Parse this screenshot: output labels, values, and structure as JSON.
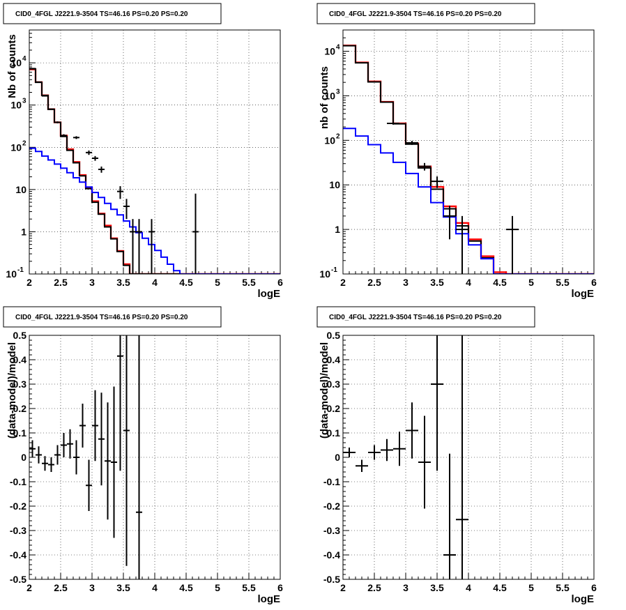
{
  "chart_data": [
    {
      "type": "line",
      "title": "CID0_4FGL J2221.9-3504 TS=46.16 PS=0.20 PS=0.20",
      "xlabel": "logE",
      "ylabel": "Nb of counts",
      "xlim": [
        2,
        6
      ],
      "ylim": [
        0.1,
        60000
      ],
      "yscale": "log",
      "grid": true,
      "x_ticks": [
        "2",
        "2.5",
        "3",
        "3.5",
        "4",
        "4.5",
        "5",
        "5.5",
        "6"
      ],
      "y_ticks": [
        {
          "value": 0.1,
          "label": "10",
          "exp": "-1"
        },
        {
          "value": 1,
          "label": "1",
          "exp": ""
        },
        {
          "value": 10,
          "label": "10",
          "exp": ""
        },
        {
          "value": 100,
          "label": "10",
          "exp": "2"
        },
        {
          "value": 1000,
          "label": "10",
          "exp": "3"
        },
        {
          "value": 10000,
          "label": "10",
          "exp": "4"
        }
      ],
      "bin_width": 0.1,
      "series": [
        {
          "color": "#ff0000",
          "kind": "hist",
          "values": [
            7000,
            3500,
            1700,
            800,
            390,
            190,
            90,
            45,
            22,
            11,
            5.3,
            2.7,
            1.4,
            0.7,
            0.35,
            0.17,
            0.1,
            0.1,
            0.1,
            0.1,
            0.1,
            0.1,
            0.1,
            0.1,
            0.1,
            0.1,
            0.1,
            0.1,
            0.1,
            0.1,
            0.1,
            0.1,
            0.1,
            0.1,
            0.1,
            0.1,
            0.1,
            0.1,
            0.1,
            0.1
          ]
        },
        {
          "color": "#000000",
          "kind": "hist",
          "values": [
            7200,
            3450,
            1690,
            790,
            390,
            180,
            85,
            43,
            21,
            10.5,
            5.0,
            2.6,
            1.3,
            0.68,
            0.34,
            0.16,
            0.1,
            0.1,
            0.1,
            0.1,
            0.1,
            0.1,
            0.1,
            0.1,
            0.1,
            0.1,
            0.1,
            0.1,
            0.1,
            0.1,
            0.1,
            0.1,
            0.1,
            0.1,
            0.1,
            0.1,
            0.1,
            0.1,
            0.1,
            0.1
          ]
        },
        {
          "color": "#0000ff",
          "kind": "hist",
          "values": [
            95,
            80,
            62,
            50,
            40,
            32,
            25,
            19,
            15,
            11.5,
            8.5,
            6.5,
            4.7,
            3.4,
            2.5,
            1.8,
            1.3,
            0.95,
            0.7,
            0.5,
            0.36,
            0.25,
            0.17,
            0.12,
            0.1,
            0.1,
            0.1,
            0.1,
            0.1,
            0.1,
            0.1,
            0.1,
            0.1,
            0.1,
            0.1,
            0.1,
            0.1,
            0.1,
            0.1,
            0.1
          ]
        },
        {
          "color": "#000000",
          "kind": "points",
          "xerr": 0.05,
          "points": [
            {
              "x": 2.05,
              "y": 7300,
              "lo": 7215,
              "hi": 7385
            },
            {
              "x": 2.15,
              "y": 3500,
              "lo": 3441,
              "hi": 3559
            },
            {
              "x": 2.25,
              "y": 1650,
              "lo": 1609,
              "hi": 1691
            },
            {
              "x": 2.35,
              "y": 800,
              "lo": 772,
              "hi": 828
            },
            {
              "x": 2.45,
              "y": 390,
              "lo": 370,
              "hi": 410
            },
            {
              "x": 2.55,
              "y": 190,
              "lo": 176,
              "hi": 204
            },
            {
              "x": 2.75,
              "y": 170,
              "lo": 157,
              "hi": 183
            },
            {
              "x": 2.95,
              "y": 75,
              "lo": 66,
              "hi": 84
            },
            {
              "x": 3.05,
              "y": 55,
              "lo": 48,
              "hi": 62
            },
            {
              "x": 3.15,
              "y": 30,
              "lo": 25,
              "hi": 35
            },
            {
              "x": 3.45,
              "y": 9,
              "lo": 6,
              "hi": 12
            },
            {
              "x": 3.55,
              "y": 4,
              "lo": 2,
              "hi": 6
            },
            {
              "x": 3.65,
              "y": 1,
              "lo": 0.1,
              "hi": 2
            },
            {
              "x": 3.75,
              "y": 1,
              "lo": 0.1,
              "hi": 2
            },
            {
              "x": 3.95,
              "y": 1,
              "lo": 0.1,
              "hi": 2
            },
            {
              "x": 4.65,
              "y": 1,
              "lo": 0.1,
              "hi": 8
            }
          ]
        }
      ]
    },
    {
      "type": "line",
      "title": "CID0_4FGL J2221.9-3504 TS=46.16 PS=0.20 PS=0.20",
      "xlabel": "logE",
      "ylabel": "nb of counts",
      "xlim": [
        2,
        6
      ],
      "ylim": [
        0.1,
        30000
      ],
      "yscale": "log",
      "grid": true,
      "x_ticks": [
        "2",
        "2.5",
        "3",
        "3.5",
        "4",
        "4.5",
        "5",
        "5.5",
        "6"
      ],
      "y_ticks": [
        {
          "value": 0.1,
          "label": "10",
          "exp": "-1"
        },
        {
          "value": 1,
          "label": "1",
          "exp": ""
        },
        {
          "value": 10,
          "label": "10",
          "exp": ""
        },
        {
          "value": 100,
          "label": "10",
          "exp": "2"
        },
        {
          "value": 1000,
          "label": "10",
          "exp": "3"
        },
        {
          "value": 10000,
          "label": "10",
          "exp": "4"
        }
      ],
      "bin_width": 0.2,
      "series": [
        {
          "color": "#ff0000",
          "kind": "hist",
          "values": [
            13500,
            5600,
            2100,
            730,
            240,
            85,
            26,
            9,
            3.3,
            1.4,
            0.6,
            0.25,
            0.11,
            0.1,
            0.1,
            0.1,
            0.1,
            0.1,
            0.1,
            0.1
          ]
        },
        {
          "color": "#000000",
          "kind": "hist",
          "values": [
            13300,
            5500,
            2050,
            720,
            235,
            82,
            24,
            8,
            2.9,
            1.2,
            0.55,
            0.23,
            0.1,
            0.1,
            0.1,
            0.1,
            0.1,
            0.1,
            0.1,
            0.1
          ]
        },
        {
          "color": "#0000ff",
          "kind": "hist",
          "values": [
            185,
            125,
            80,
            52,
            32,
            18,
            9,
            4,
            1.9,
            0.8,
            0.45,
            0.22,
            0.1,
            0.1,
            0.1,
            0.1,
            0.1,
            0.1,
            0.1,
            0.1
          ]
        },
        {
          "color": "#000000",
          "kind": "points",
          "xerr": 0.1,
          "points": [
            {
              "x": 2.8,
              "y": 240,
              "lo": 225,
              "hi": 255
            },
            {
              "x": 3.1,
              "y": 88,
              "lo": 79,
              "hi": 97
            },
            {
              "x": 3.3,
              "y": 26,
              "lo": 21,
              "hi": 31
            },
            {
              "x": 3.5,
              "y": 12,
              "lo": 8.5,
              "hi": 15.5
            },
            {
              "x": 3.7,
              "y": 2,
              "lo": 0.6,
              "hi": 3.4
            },
            {
              "x": 3.9,
              "y": 1,
              "lo": 0.1,
              "hi": 2
            },
            {
              "x": 4.7,
              "y": 1,
              "lo": 0.1,
              "hi": 2
            }
          ]
        }
      ]
    },
    {
      "type": "scatter",
      "title": "CID0_4FGL J2221.9-3504 TS=46.16 PS=0.20 PS=0.20",
      "xlabel": "logE",
      "ylabel": "(data-model)/model",
      "xlim": [
        2,
        6
      ],
      "ylim": [
        -0.5,
        0.5
      ],
      "grid": true,
      "x_ticks": [
        "2",
        "2.5",
        "3",
        "3.5",
        "4",
        "4.5",
        "5",
        "5.5",
        "6"
      ],
      "y_ticks": [
        "-0.5",
        "-0.4",
        "-0.3",
        "-0.2",
        "-0.1",
        "0",
        "0.1",
        "0.2",
        "0.3",
        "0.4",
        "0.5"
      ],
      "xerr": 0.05,
      "points": [
        {
          "x": 2.05,
          "y": 0.035,
          "err": 0.035
        },
        {
          "x": 2.15,
          "y": 0.01,
          "err": 0.035
        },
        {
          "x": 2.25,
          "y": -0.025,
          "err": 0.03
        },
        {
          "x": 2.35,
          "y": -0.03,
          "err": 0.03
        },
        {
          "x": 2.45,
          "y": 0.01,
          "err": 0.04
        },
        {
          "x": 2.55,
          "y": 0.05,
          "err": 0.05
        },
        {
          "x": 2.65,
          "y": 0.055,
          "err": 0.06
        },
        {
          "x": 2.75,
          "y": 0.0,
          "err": 0.07
        },
        {
          "x": 2.85,
          "y": 0.13,
          "err": 0.09
        },
        {
          "x": 2.95,
          "y": -0.115,
          "err": 0.105
        },
        {
          "x": 3.05,
          "y": 0.13,
          "err": 0.145
        },
        {
          "x": 3.15,
          "y": 0.075,
          "err": 0.19
        },
        {
          "x": 3.25,
          "y": -0.015,
          "err": 0.24
        },
        {
          "x": 3.35,
          "y": -0.02,
          "err": 0.31
        },
        {
          "x": 3.45,
          "y": 0.415,
          "err": 0.47
        },
        {
          "x": 3.55,
          "y": 0.11,
          "err": 0.555
        },
        {
          "x": 3.75,
          "y": -0.225,
          "err": 0.9
        }
      ]
    },
    {
      "type": "scatter",
      "title": "CID0_4FGL J2221.9-3504 TS=46.16 PS=0.20 PS=0.20",
      "xlabel": "logE",
      "ylabel": "(data-model)/model",
      "xlim": [
        2,
        6
      ],
      "ylim": [
        -0.5,
        0.5
      ],
      "grid": true,
      "x_ticks": [
        "2",
        "2.5",
        "3",
        "3.5",
        "4",
        "4.5",
        "5",
        "5.5",
        "6"
      ],
      "y_ticks": [
        "-0.5",
        "-0.4",
        "-0.3",
        "-0.2",
        "-0.1",
        "0",
        "0.1",
        "0.2",
        "0.3",
        "0.4",
        "0.5"
      ],
      "xerr": 0.1,
      "points": [
        {
          "x": 2.1,
          "y": 0.02,
          "err": 0.02
        },
        {
          "x": 2.3,
          "y": -0.035,
          "err": 0.025
        },
        {
          "x": 2.5,
          "y": 0.02,
          "err": 0.03
        },
        {
          "x": 2.7,
          "y": 0.03,
          "err": 0.045
        },
        {
          "x": 2.9,
          "y": 0.035,
          "err": 0.07
        },
        {
          "x": 3.1,
          "y": 0.11,
          "err": 0.115
        },
        {
          "x": 3.3,
          "y": -0.02,
          "err": 0.19
        },
        {
          "x": 3.5,
          "y": 0.3,
          "err": 0.355
        },
        {
          "x": 3.7,
          "y": -0.4,
          "err": 0.415
        },
        {
          "x": 3.9,
          "y": -0.255,
          "err": 0.76
        }
      ]
    }
  ]
}
